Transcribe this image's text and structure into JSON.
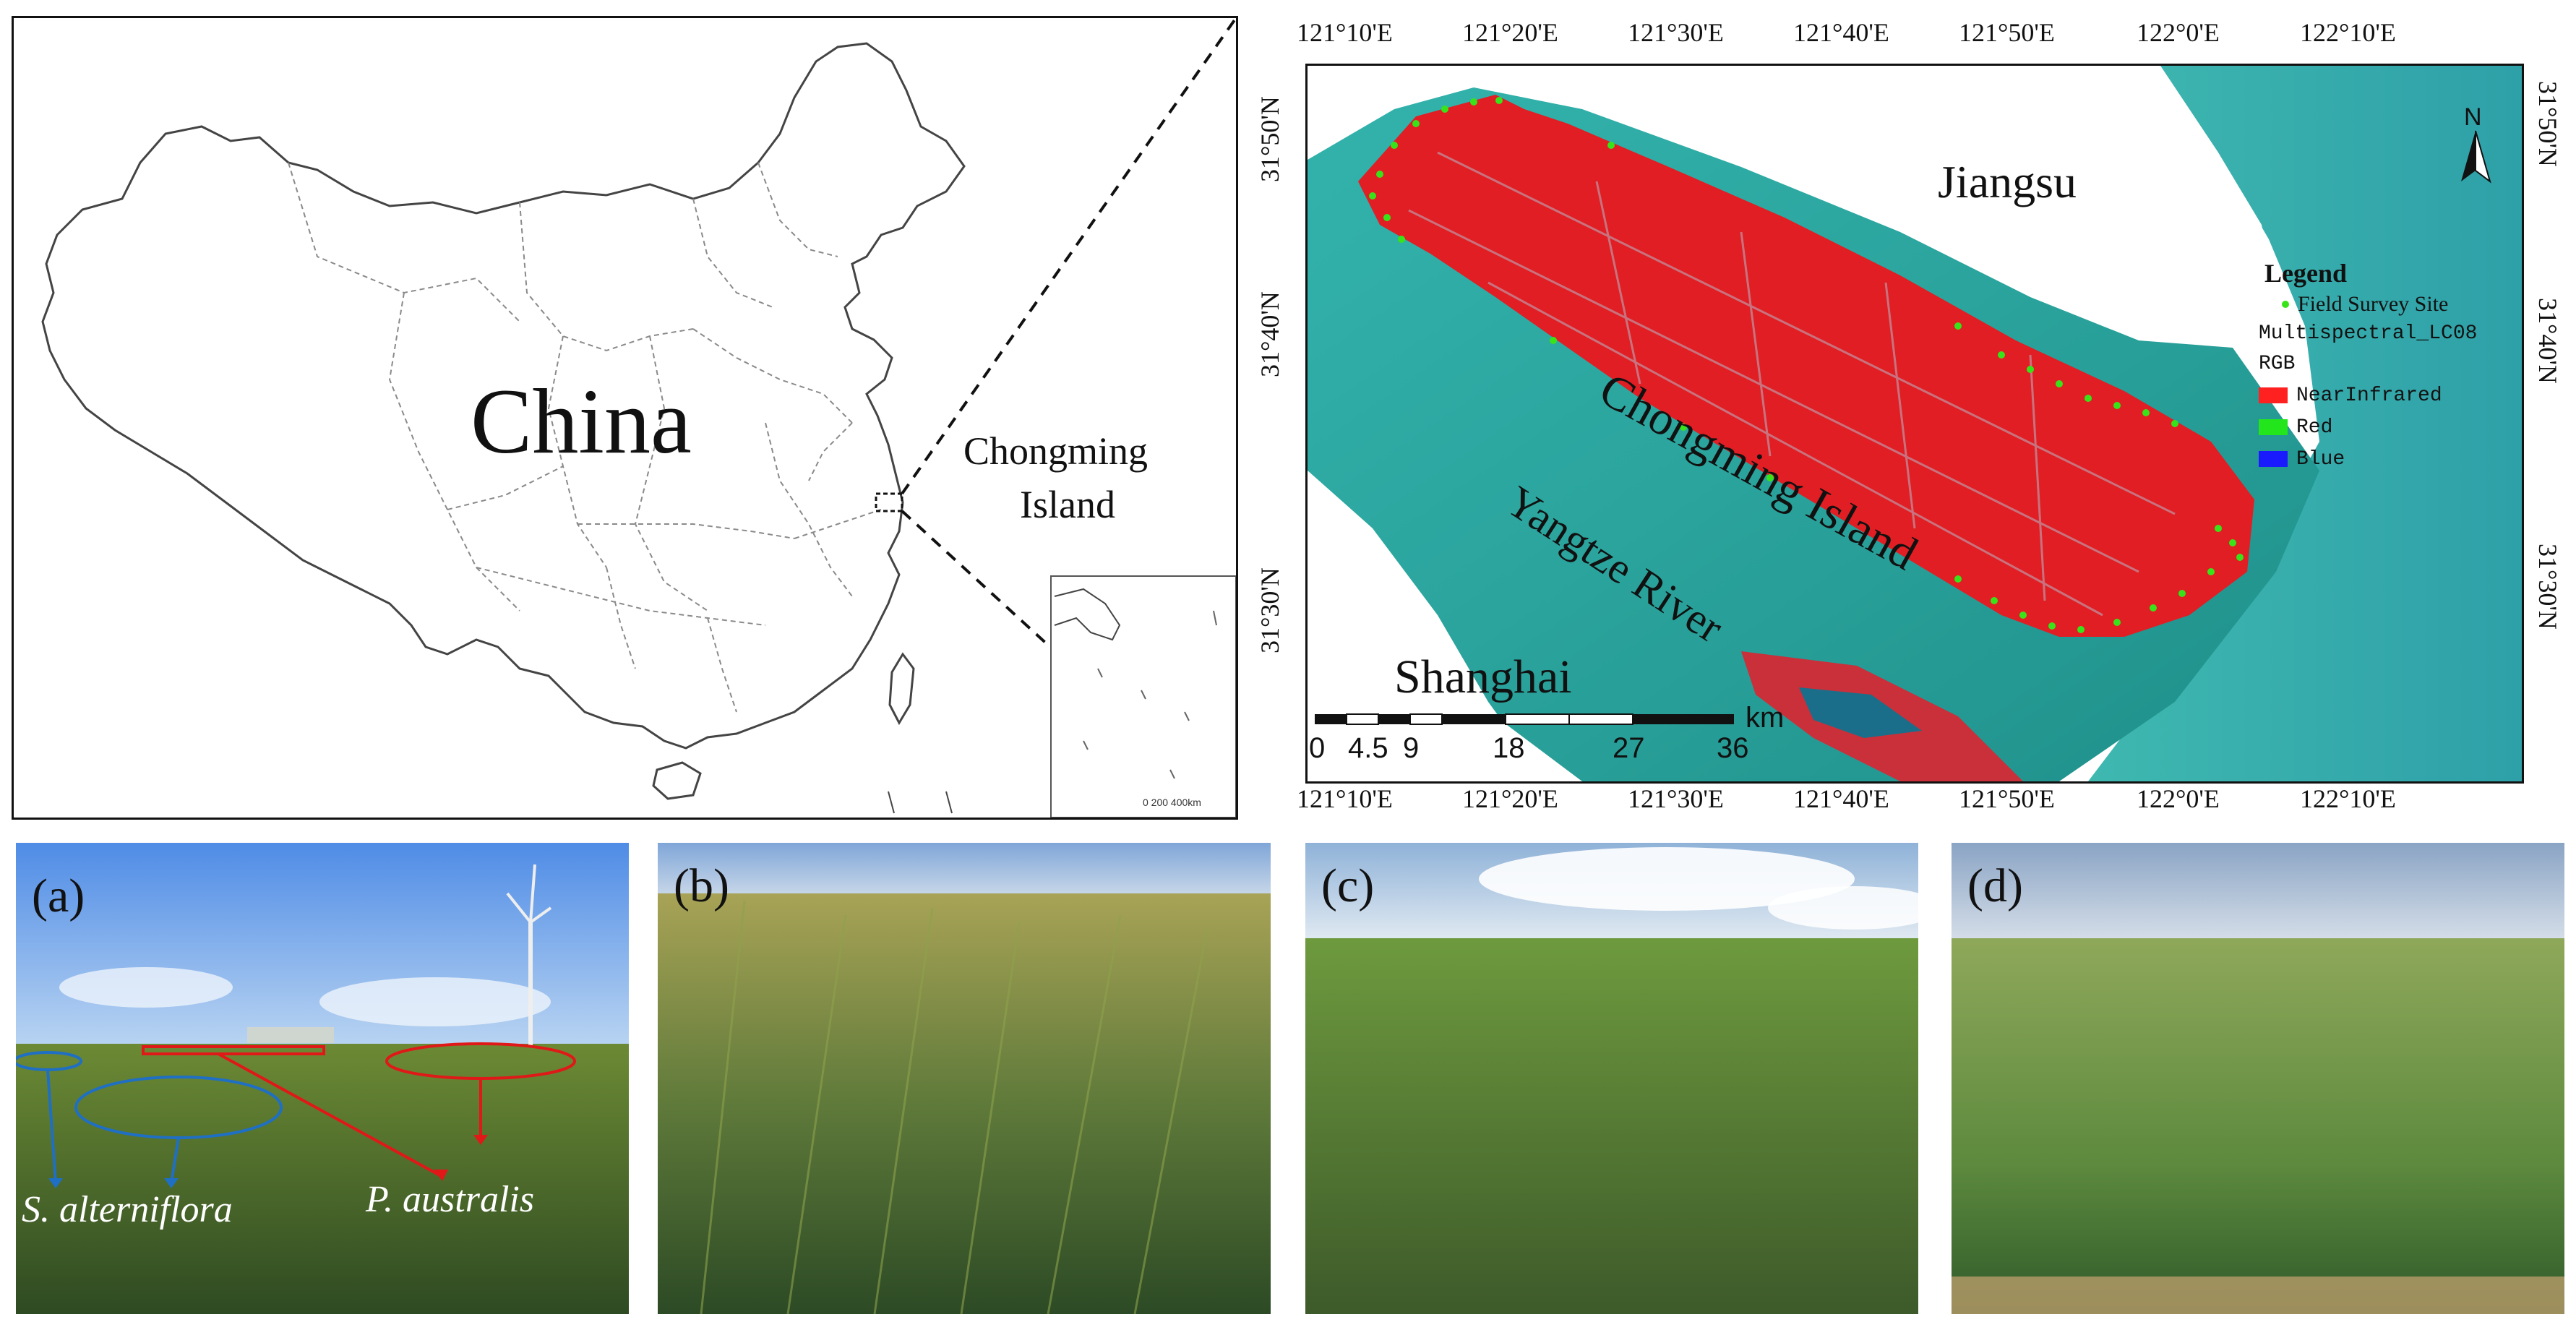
{
  "overview_map": {
    "country_label": "China",
    "region_label_line1": "Chongming",
    "region_label_line2": "Island",
    "inset_scale_text": "0  200 400km",
    "colors": {
      "outline": "#555555",
      "province": "#8a8a8a"
    }
  },
  "detail_map": {
    "top_lon_ticks": [
      "121°10'E",
      "121°20'E",
      "121°30'E",
      "121°40'E",
      "121°50'E",
      "122°0'E",
      "122°10'E"
    ],
    "bottom_lon_ticks": [
      "121°10'E",
      "121°20'E",
      "121°30'E",
      "121°40'E",
      "121°50'E",
      "122°0'E",
      "122°10'E"
    ],
    "left_lat_ticks": [
      "31°50'N",
      "31°40'N",
      "31°30'N"
    ],
    "right_lat_ticks": [
      "31°50'N",
      "31°40'N",
      "31°30'N"
    ],
    "place_labels": {
      "jiangsu": "Jiangsu",
      "island": "Chongming Island",
      "river": "Yangtze River",
      "shanghai": "Shanghai"
    },
    "north_label": "N",
    "scale_bar": {
      "labels": [
        "0",
        "4.5",
        "9",
        "18",
        "27",
        "36"
      ],
      "unit": "km"
    },
    "legend": {
      "title": "Legend",
      "field_site": "Field Survey Site",
      "dataset": "Multispectral_LC08",
      "rgb": "RGB",
      "bands": [
        {
          "label": "NearInfrared",
          "color": "#ff2020"
        },
        {
          "label": "Red",
          "color": "#22e51b"
        },
        {
          "label": "Blue",
          "color": "#1a1aff"
        }
      ]
    },
    "colors": {
      "water": "#2aa5a0",
      "land": "#e01e24",
      "site": "#39e31a"
    }
  },
  "photos": {
    "a": {
      "label": "(a)",
      "species_1": "S. alterniflora",
      "species_2": "P. australis",
      "colors": {
        "species_1": "#1f6fc4",
        "species_2": "#e01818"
      }
    },
    "b": {
      "label": "(b)"
    },
    "c": {
      "label": "(c)"
    },
    "d": {
      "label": "(d)"
    }
  }
}
